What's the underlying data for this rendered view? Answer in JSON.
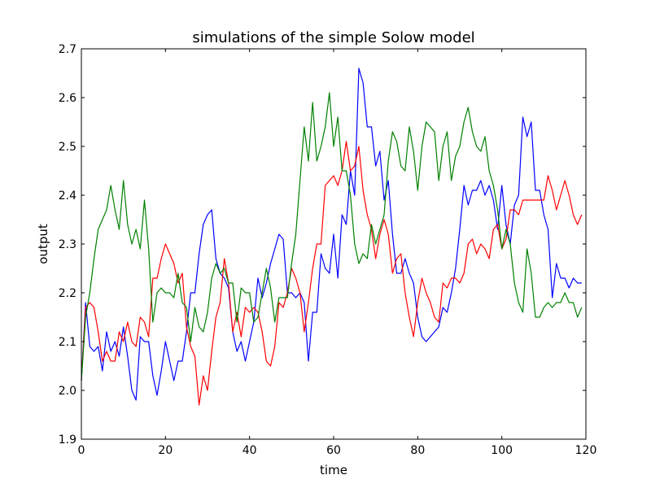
{
  "chart_data": {
    "type": "line",
    "title": "simulations of the simple Solow model",
    "xlabel": "time",
    "ylabel": "output",
    "xlim": [
      0,
      120
    ],
    "ylim": [
      1.9,
      2.7
    ],
    "xticks": [
      "0",
      "20",
      "40",
      "60",
      "80",
      "100",
      "120"
    ],
    "yticks": [
      "1.9",
      "2.0",
      "2.1",
      "2.2",
      "2.3",
      "2.4",
      "2.5",
      "2.6",
      "2.7"
    ],
    "grid": false,
    "legend": "none",
    "series": [
      {
        "color": "#0000ff",
        "x": [
          0,
          1,
          2,
          3,
          4,
          5,
          6,
          7,
          8,
          9,
          10,
          11,
          12,
          13,
          14,
          15,
          16,
          17,
          18,
          19,
          20,
          21,
          22,
          23,
          24,
          25,
          26,
          27,
          28,
          29,
          30,
          31,
          32,
          33,
          34,
          35,
          36,
          37,
          38,
          39,
          40,
          41,
          42,
          43,
          44,
          45,
          46,
          47,
          48,
          49,
          50,
          51,
          52,
          53,
          54,
          55,
          56,
          57,
          58,
          59,
          60,
          61,
          62,
          63,
          64,
          65,
          66,
          67,
          68,
          69,
          70,
          71,
          72,
          73,
          74,
          75,
          76,
          77,
          78,
          79,
          80,
          81,
          82,
          83,
          84,
          85,
          86,
          87,
          88,
          89,
          90,
          91,
          92,
          93,
          94,
          95,
          96,
          97,
          98,
          99,
          100,
          101,
          102,
          103,
          104,
          105,
          106,
          107,
          108,
          109,
          110,
          111,
          112,
          113,
          114,
          115,
          116,
          117,
          118,
          119
        ],
        "y": [
          2.02,
          2.18,
          2.09,
          2.08,
          2.09,
          2.04,
          2.12,
          2.08,
          2.1,
          2.07,
          2.13,
          2.07,
          2.0,
          1.98,
          2.11,
          2.1,
          2.1,
          2.03,
          1.99,
          2.04,
          2.1,
          2.06,
          2.02,
          2.06,
          2.06,
          2.12,
          2.2,
          2.2,
          2.28,
          2.34,
          2.36,
          2.37,
          2.27,
          2.24,
          2.23,
          2.21,
          2.12,
          2.08,
          2.1,
          2.06,
          2.1,
          2.14,
          2.23,
          2.19,
          2.22,
          2.26,
          2.29,
          2.32,
          2.31,
          2.2,
          2.2,
          2.19,
          2.2,
          2.18,
          2.06,
          2.16,
          2.16,
          2.28,
          2.25,
          2.24,
          2.32,
          2.23,
          2.36,
          2.34,
          2.45,
          2.4,
          2.66,
          2.63,
          2.54,
          2.54,
          2.46,
          2.49,
          2.39,
          2.43,
          2.32,
          2.24,
          2.24,
          2.27,
          2.24,
          2.22,
          2.15,
          2.11,
          2.1,
          2.11,
          2.12,
          2.13,
          2.17,
          2.16,
          2.2,
          2.25,
          2.33,
          2.42,
          2.38,
          2.41,
          2.41,
          2.43,
          2.4,
          2.42,
          2.39,
          2.33,
          2.42,
          2.34,
          2.3,
          2.38,
          2.4,
          2.56,
          2.52,
          2.55,
          2.41,
          2.41,
          2.36,
          2.33,
          2.19,
          2.26,
          2.23,
          2.23,
          2.21,
          2.23,
          2.22,
          2.22
        ]
      },
      {
        "color": "#ff0000",
        "x": [
          0,
          1,
          2,
          3,
          4,
          5,
          6,
          7,
          8,
          9,
          10,
          11,
          12,
          13,
          14,
          15,
          16,
          17,
          18,
          19,
          20,
          21,
          22,
          23,
          24,
          25,
          26,
          27,
          28,
          29,
          30,
          31,
          32,
          33,
          34,
          35,
          36,
          37,
          38,
          39,
          40,
          41,
          42,
          43,
          44,
          45,
          46,
          47,
          48,
          49,
          50,
          51,
          52,
          53,
          54,
          55,
          56,
          57,
          58,
          59,
          60,
          61,
          62,
          63,
          64,
          65,
          66,
          67,
          68,
          69,
          70,
          71,
          72,
          73,
          74,
          75,
          76,
          77,
          78,
          79,
          80,
          81,
          82,
          83,
          84,
          85,
          86,
          87,
          88,
          89,
          90,
          91,
          92,
          93,
          94,
          95,
          96,
          97,
          98,
          99,
          100,
          101,
          102,
          103,
          104,
          105,
          106,
          107,
          108,
          109,
          110,
          111,
          112,
          113,
          114,
          115,
          116,
          117,
          118,
          119
        ],
        "y": [
          2.02,
          2.17,
          2.18,
          2.17,
          2.12,
          2.06,
          2.08,
          2.06,
          2.06,
          2.12,
          2.1,
          2.14,
          2.1,
          2.09,
          2.15,
          2.14,
          2.11,
          2.23,
          2.23,
          2.27,
          2.3,
          2.28,
          2.26,
          2.22,
          2.24,
          2.13,
          2.09,
          2.07,
          1.97,
          2.03,
          2.0,
          2.08,
          2.15,
          2.18,
          2.27,
          2.22,
          2.12,
          2.16,
          2.11,
          2.17,
          2.16,
          2.17,
          2.16,
          2.12,
          2.06,
          2.05,
          2.09,
          2.18,
          2.17,
          2.2,
          2.25,
          2.23,
          2.2,
          2.12,
          2.18,
          2.25,
          2.3,
          2.3,
          2.42,
          2.43,
          2.44,
          2.42,
          2.45,
          2.51,
          2.45,
          2.46,
          2.5,
          2.41,
          2.36,
          2.33,
          2.27,
          2.32,
          2.35,
          2.32,
          2.24,
          2.27,
          2.28,
          2.2,
          2.15,
          2.11,
          2.18,
          2.23,
          2.2,
          2.18,
          2.15,
          2.14,
          2.22,
          2.21,
          2.23,
          2.23,
          2.22,
          2.24,
          2.3,
          2.31,
          2.28,
          2.3,
          2.29,
          2.27,
          2.33,
          2.34,
          2.29,
          2.31,
          2.37,
          2.37,
          2.36,
          2.39,
          2.39,
          2.39,
          2.39,
          2.39,
          2.39,
          2.44,
          2.41,
          2.37,
          2.4,
          2.43,
          2.4,
          2.36,
          2.34,
          2.36
        ]
      },
      {
        "color": "#008000",
        "x": [
          0,
          1,
          2,
          3,
          4,
          5,
          6,
          7,
          8,
          9,
          10,
          11,
          12,
          13,
          14,
          15,
          16,
          17,
          18,
          19,
          20,
          21,
          22,
          23,
          24,
          25,
          26,
          27,
          28,
          29,
          30,
          31,
          32,
          33,
          34,
          35,
          36,
          37,
          38,
          39,
          40,
          41,
          42,
          43,
          44,
          45,
          46,
          47,
          48,
          49,
          50,
          51,
          52,
          53,
          54,
          55,
          56,
          57,
          58,
          59,
          60,
          61,
          62,
          63,
          64,
          65,
          66,
          67,
          68,
          69,
          70,
          71,
          72,
          73,
          74,
          75,
          76,
          77,
          78,
          79,
          80,
          81,
          82,
          83,
          84,
          85,
          86,
          87,
          88,
          89,
          90,
          91,
          92,
          93,
          94,
          95,
          96,
          97,
          98,
          99,
          100,
          101,
          102,
          103,
          104,
          105,
          106,
          107,
          108,
          109,
          110,
          111,
          112,
          113,
          114,
          115,
          116,
          117,
          118,
          119
        ],
        "y": [
          2.02,
          2.15,
          2.2,
          2.27,
          2.33,
          2.35,
          2.37,
          2.42,
          2.37,
          2.33,
          2.43,
          2.34,
          2.3,
          2.33,
          2.29,
          2.39,
          2.29,
          2.14,
          2.2,
          2.21,
          2.2,
          2.2,
          2.19,
          2.24,
          2.18,
          2.17,
          2.1,
          2.17,
          2.13,
          2.12,
          2.16,
          2.23,
          2.26,
          2.24,
          2.25,
          2.22,
          2.22,
          2.14,
          2.21,
          2.2,
          2.2,
          2.14,
          2.15,
          2.2,
          2.25,
          2.21,
          2.14,
          2.19,
          2.19,
          2.19,
          2.26,
          2.32,
          2.43,
          2.54,
          2.47,
          2.59,
          2.47,
          2.5,
          2.54,
          2.61,
          2.5,
          2.56,
          2.45,
          2.45,
          2.4,
          2.3,
          2.26,
          2.28,
          2.27,
          2.34,
          2.3,
          2.33,
          2.36,
          2.47,
          2.53,
          2.51,
          2.46,
          2.45,
          2.54,
          2.49,
          2.41,
          2.5,
          2.55,
          2.54,
          2.53,
          2.43,
          2.5,
          2.53,
          2.43,
          2.48,
          2.5,
          2.55,
          2.58,
          2.53,
          2.5,
          2.49,
          2.52,
          2.45,
          2.42,
          2.37,
          2.29,
          2.33,
          2.3,
          2.22,
          2.18,
          2.16,
          2.29,
          2.24,
          2.15,
          2.15,
          2.17,
          2.18,
          2.17,
          2.18,
          2.18,
          2.2,
          2.18,
          2.18,
          2.15,
          2.17
        ]
      }
    ]
  }
}
